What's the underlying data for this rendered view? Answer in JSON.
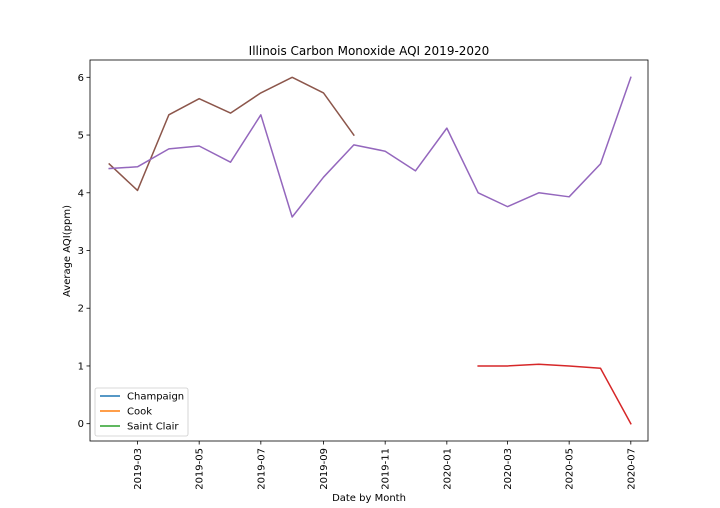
{
  "chart_data": {
    "type": "line",
    "title": "Illinois Carbon Monoxide AQI 2019-2020",
    "xlabel": "Date by Month",
    "ylabel": "Average AQI(ppm)",
    "ylim": [
      -0.3,
      6.3
    ],
    "xlim": [
      "2019-01-13",
      "2020-07-18"
    ],
    "yticks": [
      0,
      1,
      2,
      3,
      4,
      5,
      6
    ],
    "xticks": [
      "2019-03",
      "2019-05",
      "2019-07",
      "2019-09",
      "2019-11",
      "2020-01",
      "2020-03",
      "2020-05",
      "2020-07"
    ],
    "grid": false,
    "legend_position": "lower-left",
    "legend": [
      {
        "label": "Champaign",
        "color": "#1f77b4"
      },
      {
        "label": "Cook",
        "color": "#ff7f0e"
      },
      {
        "label": "Saint Clair",
        "color": "#2ca02c"
      }
    ],
    "series": [
      {
        "color": "#d62728",
        "x": [
          "2020-02",
          "2020-03",
          "2020-04",
          "2020-05",
          "2020-06",
          "2020-07"
        ],
        "y": [
          1.0,
          1.0,
          1.03,
          1.0,
          0.96,
          0.0
        ]
      },
      {
        "color": "#8c564b",
        "x": [
          "2019-02",
          "2019-03",
          "2019-04",
          "2019-05",
          "2019-06",
          "2019-07",
          "2019-08",
          "2019-09",
          "2019-10"
        ],
        "y": [
          4.5,
          4.04,
          5.35,
          5.63,
          5.38,
          5.73,
          6.0,
          5.73,
          5.0
        ]
      },
      {
        "color": "#9467bd",
        "x": [
          "2019-02",
          "2019-03",
          "2019-04",
          "2019-05",
          "2019-06",
          "2019-07",
          "2019-08",
          "2019-09",
          "2019-10",
          "2019-11",
          "2019-12",
          "2020-01",
          "2020-02",
          "2020-03",
          "2020-04",
          "2020-05",
          "2020-06",
          "2020-07"
        ],
        "y": [
          4.42,
          4.45,
          4.76,
          4.81,
          4.53,
          5.35,
          3.58,
          4.27,
          4.83,
          4.72,
          4.38,
          5.12,
          4.0,
          3.76,
          4.0,
          3.93,
          4.5,
          6.0
        ]
      }
    ]
  }
}
